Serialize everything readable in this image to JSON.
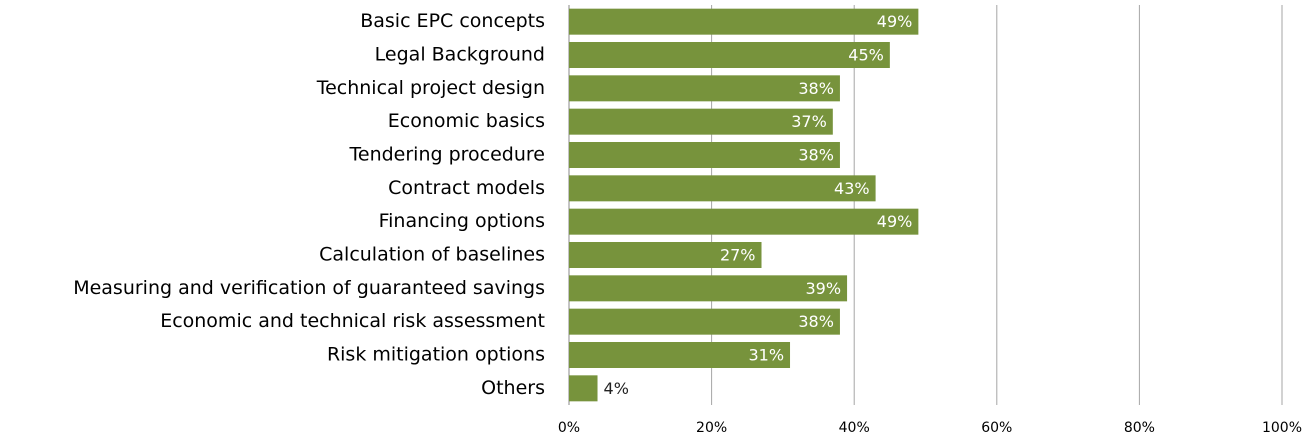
{
  "chart_data": {
    "type": "barh",
    "categories": [
      "Basic EPC concepts",
      "Legal Background",
      "Technical project design",
      "Economic basics",
      "Tendering procedure",
      "Contract models",
      "Financing options",
      "Calculation of baselines",
      "Measuring and verification of guaranteed savings",
      "Economic and technical risk assessment",
      "Risk mitigation options",
      "Others"
    ],
    "values": [
      49,
      45,
      38,
      37,
      38,
      43,
      49,
      27,
      39,
      38,
      31,
      4
    ],
    "value_labels": [
      "49%",
      "45%",
      "38%",
      "37%",
      "38%",
      "43%",
      "49%",
      "27%",
      "39%",
      "38%",
      "31%",
      "4%"
    ],
    "color": "#77933c",
    "xlim": [
      0,
      100
    ],
    "xticks": [
      {
        "value": 0,
        "label": "0%"
      },
      {
        "value": 20,
        "label": "20%"
      },
      {
        "value": 40,
        "label": "40%"
      },
      {
        "value": 60,
        "label": "60%"
      },
      {
        "value": 80,
        "label": "80%"
      },
      {
        "value": 100,
        "label": "100%"
      }
    ],
    "grid": true
  }
}
